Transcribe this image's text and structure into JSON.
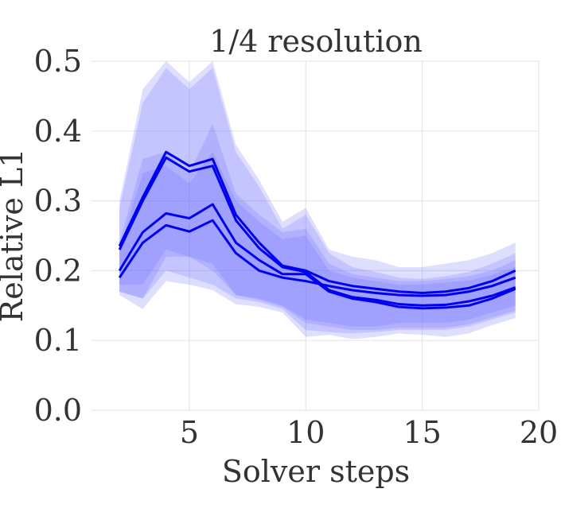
{
  "chart_data": {
    "type": "line",
    "title": "1/4 resolution",
    "xlabel": "Solver steps",
    "ylabel": "Relative L1",
    "xlim": [
      0.8,
      20
    ],
    "ylim": [
      0,
      0.5
    ],
    "xticks": [
      5,
      10,
      15,
      20
    ],
    "xtick_labels": [
      "5",
      "10",
      "15",
      "20"
    ],
    "yticks": [
      0.0,
      0.1,
      0.2,
      0.3,
      0.4,
      0.5
    ],
    "ytick_labels": [
      "0.0",
      "0.1",
      "0.2",
      "0.3",
      "0.4",
      "0.5"
    ],
    "grid": true,
    "legend": "none",
    "line_color": "#0000ee",
    "band_color": "#6a6aff",
    "x": [
      2,
      3,
      4,
      5,
      6,
      7,
      8,
      9,
      10,
      11,
      12,
      13,
      14,
      15,
      16,
      17,
      18,
      19
    ],
    "series": [
      {
        "values": [
          0.235,
          0.305,
          0.37,
          0.35,
          0.36,
          0.28,
          0.24,
          0.207,
          0.2,
          0.185,
          0.178,
          0.174,
          0.17,
          0.168,
          0.17,
          0.175,
          0.185,
          0.2
        ],
        "band_lower": [
          0.18,
          0.18,
          0.23,
          0.22,
          0.2,
          0.165,
          0.16,
          0.15,
          0.13,
          0.125,
          0.12,
          0.12,
          0.125,
          0.125,
          0.125,
          0.13,
          0.14,
          0.15
        ],
        "band_upper": [
          0.3,
          0.46,
          0.5,
          0.47,
          0.5,
          0.38,
          0.33,
          0.27,
          0.29,
          0.23,
          0.22,
          0.215,
          0.205,
          0.205,
          0.21,
          0.215,
          0.225,
          0.24
        ],
        "line_width": 3
      },
      {
        "values": [
          0.23,
          0.3,
          0.362,
          0.342,
          0.35,
          0.272,
          0.232,
          0.205,
          0.198,
          0.172,
          0.162,
          0.158,
          0.152,
          0.15,
          0.151,
          0.156,
          0.164,
          0.176
        ],
        "band_lower": [
          0.17,
          0.16,
          0.22,
          0.22,
          0.21,
          0.165,
          0.158,
          0.148,
          0.125,
          0.12,
          0.115,
          0.115,
          0.118,
          0.118,
          0.118,
          0.123,
          0.133,
          0.143
        ],
        "band_upper": [
          0.29,
          0.44,
          0.49,
          0.46,
          0.49,
          0.37,
          0.32,
          0.26,
          0.28,
          0.225,
          0.205,
          0.198,
          0.19,
          0.188,
          0.192,
          0.198,
          0.21,
          0.225
        ],
        "line_width": 3
      },
      {
        "values": [
          0.2,
          0.255,
          0.282,
          0.275,
          0.295,
          0.24,
          0.215,
          0.195,
          0.195,
          0.17,
          0.16,
          0.155,
          0.148,
          0.146,
          0.147,
          0.15,
          0.16,
          0.174
        ],
        "band_lower": [
          0.17,
          0.16,
          0.2,
          0.19,
          0.18,
          0.16,
          0.155,
          0.145,
          0.115,
          0.112,
          0.11,
          0.112,
          0.115,
          0.115,
          0.115,
          0.12,
          0.13,
          0.14
        ],
        "band_upper": [
          0.24,
          0.36,
          0.37,
          0.34,
          0.41,
          0.31,
          0.28,
          0.255,
          0.26,
          0.21,
          0.195,
          0.19,
          0.185,
          0.185,
          0.188,
          0.192,
          0.2,
          0.215
        ],
        "line_width": 3
      },
      {
        "values": [
          0.19,
          0.24,
          0.265,
          0.256,
          0.272,
          0.225,
          0.2,
          0.19,
          0.185,
          0.178,
          0.172,
          0.168,
          0.165,
          0.164,
          0.165,
          0.17,
          0.178,
          0.19
        ],
        "band_lower": [
          0.165,
          0.145,
          0.185,
          0.18,
          0.172,
          0.152,
          0.148,
          0.14,
          0.105,
          0.108,
          0.102,
          0.105,
          0.11,
          0.108,
          0.105,
          0.11,
          0.122,
          0.132
        ],
        "band_upper": [
          0.23,
          0.34,
          0.35,
          0.325,
          0.37,
          0.3,
          0.27,
          0.245,
          0.25,
          0.2,
          0.19,
          0.185,
          0.18,
          0.18,
          0.183,
          0.186,
          0.194,
          0.205
        ],
        "line_width": 3
      }
    ]
  }
}
